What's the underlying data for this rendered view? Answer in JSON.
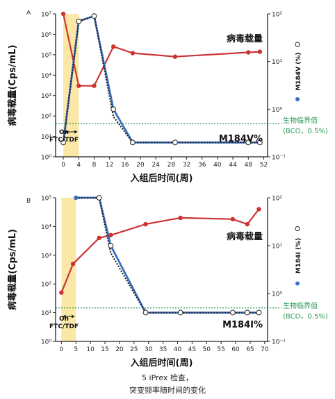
{
  "caption": {
    "line1": "5 iPrex 检查，",
    "line2": "突变频率随时间的变化"
  },
  "colors": {
    "viral": "#cc3333",
    "mutant": "#3a6fc4",
    "mutant_dots": "#222222",
    "threshold": "#2a9a5a",
    "shade": "#fbe7a6",
    "axis": "#222222"
  },
  "chart_data": [
    {
      "type": "line",
      "panel_label": "A",
      "mutation_label": "M184V%",
      "series_label": "病毒载量",
      "right_axis_label": "M184V (%)",
      "shade_label": [
        "On",
        "FTC/TDF"
      ],
      "threshold_label": [
        "生物临界值",
        "(BCO，0.5%)"
      ],
      "threshold": 0.5,
      "xlabel": "入组后时间(周)",
      "ylabel": "病毒载量(Cps/mL)",
      "xlim": [
        -2,
        53
      ],
      "xticks": [
        0,
        4,
        8,
        12,
        16,
        20,
        24,
        28,
        32,
        36,
        40,
        44,
        48,
        52
      ],
      "ylim_log": [
        0,
        7
      ],
      "yticks_left": [
        "10⁰",
        "10¹",
        "10²",
        "10³",
        "10⁴",
        "10⁵",
        "10⁶",
        "10⁷"
      ],
      "ylim_right_log": [
        -1,
        2
      ],
      "yticks_right": [
        "10⁻¹",
        "10⁰",
        "10¹",
        "10²"
      ],
      "shade_x": [
        0,
        4
      ],
      "series": [
        {
          "name": "病毒载量",
          "axis": "left",
          "x": [
            0,
            4,
            8,
            13,
            18,
            29,
            48,
            51
          ],
          "y": [
            10000000,
            3000,
            3000,
            250000,
            120000,
            80000,
            130000,
            140000
          ]
        },
        {
          "name": "M184V (%)",
          "axis": "right",
          "x": [
            0,
            4,
            8,
            13,
            18,
            29,
            48,
            51
          ],
          "y": [
            0.2,
            70,
            90,
            1.0,
            0.2,
            0.2,
            0.2,
            0.2
          ]
        },
        {
          "name": "dots",
          "axis": "right",
          "x": [
            0,
            4,
            8,
            13,
            18,
            29,
            48,
            51
          ],
          "y": [
            0.2,
            70,
            90,
            0.7,
            0.2,
            0.2,
            0.2,
            0.2
          ]
        }
      ]
    },
    {
      "type": "line",
      "panel_label": "B",
      "mutation_label": "M184I%",
      "series_label": "病毒载量",
      "right_axis_label": "M184I (%)",
      "shade_label": [
        "On",
        "FTC/TDF"
      ],
      "threshold_label": [
        "生物临界值",
        "(BCO，0.5%)"
      ],
      "threshold": 0.5,
      "xlabel": "入组后时间(周)",
      "ylabel": "病毒载量(Cps/mL)",
      "xlim": [
        -2,
        71
      ],
      "xticks": [
        0,
        5,
        10,
        15,
        20,
        25,
        30,
        35,
        40,
        45,
        50,
        55,
        60,
        65,
        70
      ],
      "ylim_log": [
        0,
        5
      ],
      "yticks_left": [
        "10⁰",
        "10¹",
        "10²",
        "10³",
        "10⁴",
        "10⁵"
      ],
      "ylim_right_log": [
        -1,
        2
      ],
      "yticks_right": [
        "10⁻¹",
        "10⁰",
        "10¹",
        "10²"
      ],
      "shade_x": [
        0,
        5
      ],
      "series": [
        {
          "name": "病毒载量",
          "axis": "left",
          "x": [
            0,
            4,
            13,
            17,
            29,
            41,
            59,
            64,
            68
          ],
          "y": [
            50,
            500,
            4000,
            5000,
            12000,
            20000,
            18000,
            12000,
            40000
          ]
        },
        {
          "name": "M184I (%)",
          "axis": "right",
          "x": [
            5,
            13,
            17,
            29,
            41,
            59,
            64,
            68
          ],
          "y": [
            100,
            100,
            10,
            0.4,
            0.4,
            0.4,
            0.4,
            0.4
          ]
        },
        {
          "name": "dots",
          "axis": "right",
          "x": [
            5,
            13,
            17,
            29,
            41,
            59,
            64,
            68
          ],
          "y": [
            100,
            100,
            7,
            0.4,
            0.4,
            0.4,
            0.4,
            0.4
          ]
        }
      ]
    }
  ]
}
